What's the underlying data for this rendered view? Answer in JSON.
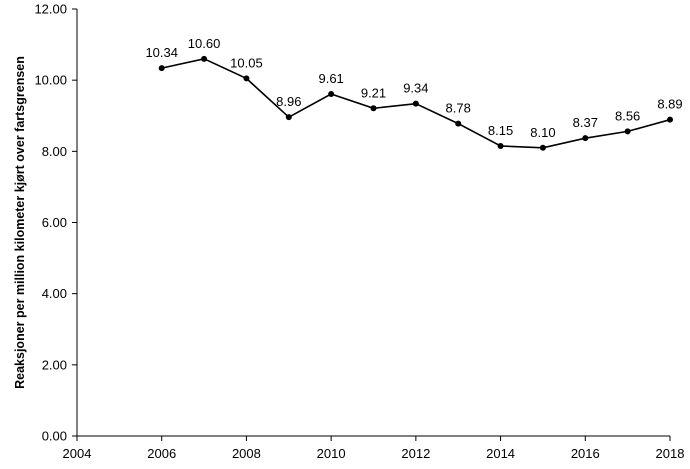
{
  "chart_data": {
    "type": "line",
    "title": "",
    "xlabel": "",
    "ylabel": "Reaksjoner per million kilometer kjørt over fartsgrensen",
    "xlim": [
      2004,
      2018
    ],
    "ylim": [
      0,
      12
    ],
    "x_ticks": [
      "2004",
      "2006",
      "2008",
      "2010",
      "2012",
      "2014",
      "2016",
      "2018"
    ],
    "y_ticks": [
      "0.00",
      "2.00",
      "4.00",
      "6.00",
      "8.00",
      "10.00",
      "12.00"
    ],
    "grid": false,
    "legend": "none",
    "line_color": "#000000",
    "series": [
      {
        "x": [
          2006,
          2007,
          2008,
          2009,
          2010,
          2011,
          2012,
          2013,
          2014,
          2015,
          2016,
          2017,
          2018
        ],
        "values": [
          10.34,
          10.6,
          10.05,
          8.96,
          9.61,
          9.21,
          9.34,
          8.78,
          8.15,
          8.1,
          8.37,
          8.56,
          8.89
        ],
        "labels": [
          "10.34",
          "10.60",
          "10.05",
          "8.96",
          "9.61",
          "9.21",
          "9.34",
          "8.78",
          "8.15",
          "8.10",
          "8.37",
          "8.56",
          "8.89"
        ]
      }
    ]
  }
}
